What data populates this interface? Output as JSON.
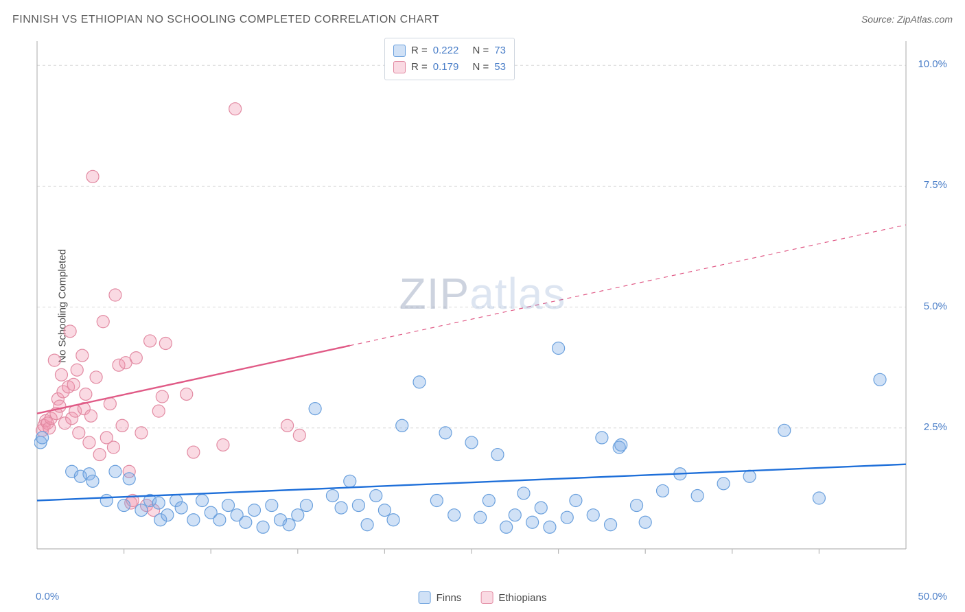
{
  "title": "FINNISH VS ETHIOPIAN NO SCHOOLING COMPLETED CORRELATION CHART",
  "source": "Source: ZipAtlas.com",
  "ylabel": "No Schooling Completed",
  "watermark": {
    "part1": "ZIP",
    "part2": "atlas"
  },
  "chart": {
    "type": "scatter",
    "background_color": "#ffffff",
    "grid_color": "#d7d7d7",
    "grid_dash": "4,4",
    "axis_color": "#b8b8b8",
    "tick_color": "#b8b8b8",
    "xlim": [
      0,
      50
    ],
    "ylim": [
      0,
      10.5
    ],
    "xtick_step": 5,
    "ytick_labels": [
      {
        "v": 2.5,
        "label": "2.5%"
      },
      {
        "v": 5.0,
        "label": "5.0%"
      },
      {
        "v": 7.5,
        "label": "7.5%"
      },
      {
        "v": 10.0,
        "label": "10.0%"
      }
    ],
    "xtick_labels": {
      "min": "0.0%",
      "max": "50.0%"
    },
    "marker_radius": 9,
    "marker_stroke_width": 1.2,
    "trend_line_width": 2.4,
    "series": {
      "finns": {
        "label": "Finns",
        "color_fill": "rgba(120,170,230,0.35)",
        "color_stroke": "#6aa0dd",
        "line_color": "#1e6fd9",
        "trend": {
          "x1": 0,
          "y1": 1.0,
          "x2": 50,
          "y2": 1.75,
          "solid_to_x": 50
        },
        "legend_top": {
          "R_label": "R =",
          "R_value": "0.222",
          "N_label": "N =",
          "N_value": "73"
        },
        "points": [
          [
            0.2,
            2.2
          ],
          [
            0.3,
            2.3
          ],
          [
            2.0,
            1.6
          ],
          [
            2.5,
            1.5
          ],
          [
            3.0,
            1.55
          ],
          [
            3.2,
            1.4
          ],
          [
            4.0,
            1.0
          ],
          [
            4.5,
            1.6
          ],
          [
            5.0,
            0.9
          ],
          [
            5.3,
            1.45
          ],
          [
            6.0,
            0.8
          ],
          [
            6.5,
            1.0
          ],
          [
            7.0,
            0.95
          ],
          [
            7.1,
            0.6
          ],
          [
            7.5,
            0.7
          ],
          [
            8.0,
            1.0
          ],
          [
            8.3,
            0.85
          ],
          [
            9.0,
            0.6
          ],
          [
            9.5,
            1.0
          ],
          [
            10.0,
            0.75
          ],
          [
            10.5,
            0.6
          ],
          [
            11.0,
            0.9
          ],
          [
            11.5,
            0.7
          ],
          [
            12.0,
            0.55
          ],
          [
            12.5,
            0.8
          ],
          [
            13.0,
            0.45
          ],
          [
            13.5,
            0.9
          ],
          [
            14.0,
            0.6
          ],
          [
            14.5,
            0.5
          ],
          [
            15.0,
            0.7
          ],
          [
            15.5,
            0.9
          ],
          [
            16.0,
            2.9
          ],
          [
            17.0,
            1.1
          ],
          [
            17.5,
            0.85
          ],
          [
            18.0,
            1.4
          ],
          [
            18.5,
            0.9
          ],
          [
            19.0,
            0.5
          ],
          [
            19.5,
            1.1
          ],
          [
            20.0,
            0.8
          ],
          [
            20.5,
            0.6
          ],
          [
            21.0,
            2.55
          ],
          [
            22.0,
            3.45
          ],
          [
            23.0,
            1.0
          ],
          [
            23.5,
            2.4
          ],
          [
            24.0,
            0.7
          ],
          [
            25.0,
            2.2
          ],
          [
            25.5,
            0.65
          ],
          [
            26.0,
            1.0
          ],
          [
            26.5,
            1.95
          ],
          [
            27.0,
            0.45
          ],
          [
            27.5,
            0.7
          ],
          [
            28.0,
            1.15
          ],
          [
            28.5,
            0.55
          ],
          [
            29.0,
            0.85
          ],
          [
            29.5,
            0.45
          ],
          [
            30.0,
            4.15
          ],
          [
            30.5,
            0.65
          ],
          [
            31.0,
            1.0
          ],
          [
            32.0,
            0.7
          ],
          [
            32.5,
            2.3
          ],
          [
            33.0,
            0.5
          ],
          [
            33.5,
            2.1
          ],
          [
            33.6,
            2.15
          ],
          [
            34.5,
            0.9
          ],
          [
            35.0,
            0.55
          ],
          [
            36.0,
            1.2
          ],
          [
            37.0,
            1.55
          ],
          [
            38.0,
            1.1
          ],
          [
            39.5,
            1.35
          ],
          [
            41.0,
            1.5
          ],
          [
            43.0,
            2.45
          ],
          [
            45.0,
            1.05
          ],
          [
            48.5,
            3.5
          ]
        ]
      },
      "ethiopians": {
        "label": "Ethiopians",
        "color_fill": "rgba(240,150,175,0.35)",
        "color_stroke": "#e28aa2",
        "line_color": "#e05a86",
        "trend": {
          "x1": 0,
          "y1": 2.8,
          "x2": 50,
          "y2": 6.7,
          "solid_to_x": 18
        },
        "legend_top": {
          "R_label": "R =",
          "R_value": "0.179",
          "N_label": "N =",
          "N_value": "53"
        },
        "points": [
          [
            0.3,
            2.45
          ],
          [
            0.4,
            2.55
          ],
          [
            0.5,
            2.65
          ],
          [
            0.6,
            2.6
          ],
          [
            0.7,
            2.5
          ],
          [
            0.8,
            2.7
          ],
          [
            1.0,
            3.9
          ],
          [
            1.1,
            2.8
          ],
          [
            1.2,
            3.1
          ],
          [
            1.3,
            2.95
          ],
          [
            1.4,
            3.6
          ],
          [
            1.5,
            3.25
          ],
          [
            1.6,
            2.6
          ],
          [
            1.8,
            3.35
          ],
          [
            1.9,
            4.5
          ],
          [
            2.0,
            2.7
          ],
          [
            2.1,
            3.4
          ],
          [
            2.2,
            2.85
          ],
          [
            2.3,
            3.7
          ],
          [
            2.4,
            2.4
          ],
          [
            2.6,
            4.0
          ],
          [
            2.7,
            2.9
          ],
          [
            2.8,
            3.2
          ],
          [
            3.0,
            2.2
          ],
          [
            3.1,
            2.75
          ],
          [
            3.2,
            7.7
          ],
          [
            3.4,
            3.55
          ],
          [
            3.6,
            1.95
          ],
          [
            3.8,
            4.7
          ],
          [
            4.0,
            2.3
          ],
          [
            4.2,
            3.0
          ],
          [
            4.4,
            2.1
          ],
          [
            4.5,
            5.25
          ],
          [
            4.7,
            3.8
          ],
          [
            4.9,
            2.55
          ],
          [
            5.1,
            3.85
          ],
          [
            5.3,
            1.6
          ],
          [
            5.4,
            0.95
          ],
          [
            5.5,
            1.0
          ],
          [
            5.7,
            3.95
          ],
          [
            6.0,
            2.4
          ],
          [
            6.3,
            0.9
          ],
          [
            6.5,
            4.3
          ],
          [
            6.7,
            0.8
          ],
          [
            7.0,
            2.85
          ],
          [
            7.2,
            3.15
          ],
          [
            7.4,
            4.25
          ],
          [
            8.6,
            3.2
          ],
          [
            9.0,
            2.0
          ],
          [
            10.7,
            2.15
          ],
          [
            11.4,
            9.1
          ],
          [
            14.4,
            2.55
          ],
          [
            15.1,
            2.35
          ]
        ]
      }
    }
  }
}
